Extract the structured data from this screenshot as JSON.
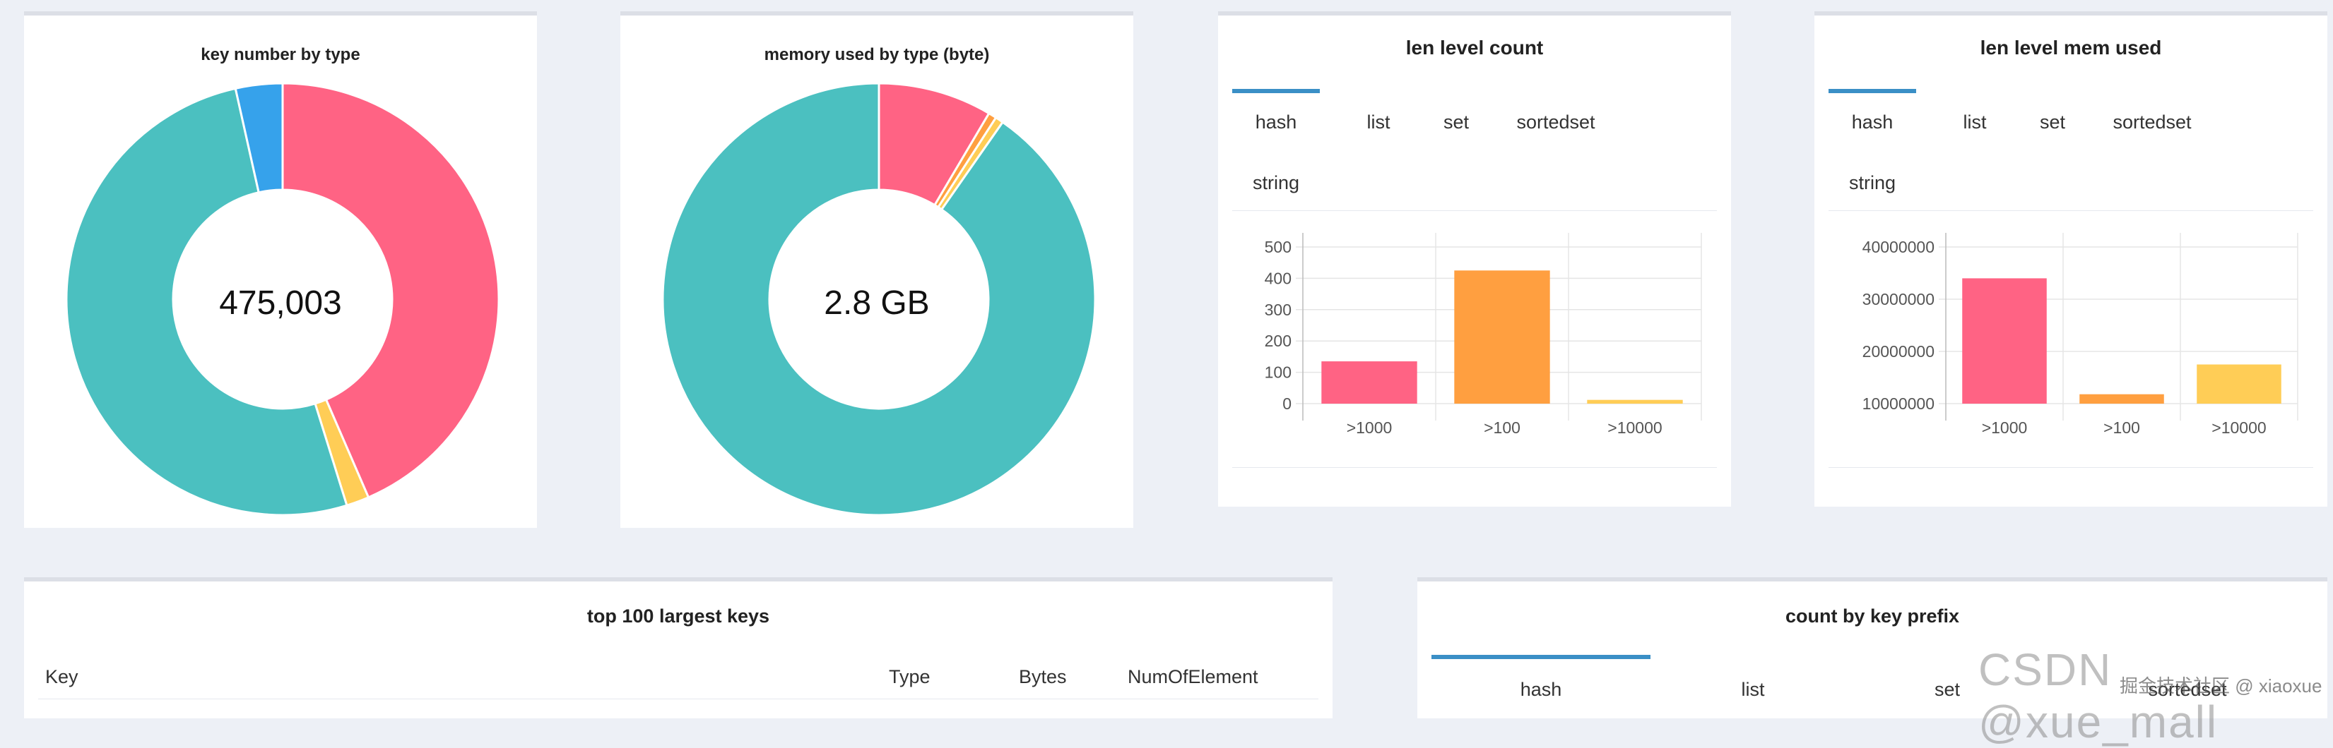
{
  "cards": {
    "key_number": {
      "title": "key number by type",
      "center": "475,003",
      "colors": [
        "#ff6384",
        "#ffcd56",
        "#4bc0c0",
        "#36a2eb"
      ]
    },
    "memory": {
      "title": "memory used by type (byte)",
      "center": "2.8 GB",
      "colors": [
        "#ff6384",
        "#ff9f40",
        "#ffcd56",
        "#4bc0c0"
      ]
    },
    "len_count": {
      "title": "len level count",
      "tabs": [
        "hash",
        "list",
        "set",
        "sortedset",
        "string"
      ],
      "active_tab": "hash"
    },
    "len_mem": {
      "title": "len level mem used",
      "tabs": [
        "hash",
        "list",
        "set",
        "sortedset",
        "string"
      ],
      "active_tab": "hash"
    },
    "top_keys": {
      "title": "top 100 largest keys",
      "columns": [
        "Key",
        "Type",
        "Bytes",
        "NumOfElement"
      ]
    },
    "prefix": {
      "title": "count by key prefix",
      "tabs": [
        "hash",
        "list",
        "set",
        "sortedset"
      ],
      "active_tab": "hash"
    }
  },
  "watermark": {
    "main": "CSDN @xue_mall",
    "small": "掘金技术社区 @ xiaoxue"
  },
  "chart_data": [
    {
      "type": "pie",
      "title": "key number by type",
      "center_label": "475,003",
      "slice_fractions": [
        0.435,
        0.017,
        0.513,
        0.035
      ],
      "colors": [
        "#ff6384",
        "#ffcd56",
        "#4bc0c0",
        "#36a2eb"
      ]
    },
    {
      "type": "pie",
      "title": "memory used by type (byte)",
      "center_label": "2.8 GB",
      "slice_fractions": [
        0.085,
        0.006,
        0.006,
        0.903
      ],
      "colors": [
        "#ff6384",
        "#ff9f40",
        "#ffcd56",
        "#4bc0c0"
      ]
    },
    {
      "type": "bar",
      "title": "len level count",
      "categories": [
        ">1000",
        ">100",
        ">10000"
      ],
      "values": [
        135,
        425,
        12
      ],
      "colors": [
        "#ff6384",
        "#ff9f40",
        "#ffcd56"
      ],
      "yticks": [
        "0",
        "100",
        "200",
        "300",
        "400",
        "500"
      ],
      "ylim": [
        0,
        500
      ]
    },
    {
      "type": "bar",
      "title": "len level mem used",
      "categories": [
        ">1000",
        ">100",
        ">10000"
      ],
      "values": [
        34000000,
        11800000,
        17500000
      ],
      "colors": [
        "#ff6384",
        "#ff9f40",
        "#ffcd56"
      ],
      "yticks": [
        "10000000",
        "20000000",
        "30000000",
        "40000000"
      ],
      "ylim": [
        10000000,
        40000000
      ]
    }
  ]
}
